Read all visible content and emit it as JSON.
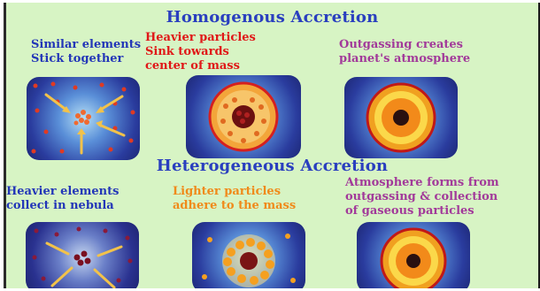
{
  "homogenous": {
    "title": "Homogenous Accretion",
    "step1": {
      "line1": "Similar elements",
      "line2": "Stick together"
    },
    "step2": {
      "line1": "Heavier particles",
      "line2": "Sink towards",
      "line3": "center of mass"
    },
    "step3": {
      "line1": "Outgassing creates",
      "line2": "planet's atmosphere"
    }
  },
  "heterogeneous": {
    "title": "Heterogeneous Accretion",
    "step1": {
      "line1": "Heavier elements",
      "line2": "collect in nebula"
    },
    "step2": {
      "line1": "Lighter particles",
      "line2": "adhere to the mass"
    },
    "step3": {
      "line1": "Atmosphere forms from",
      "line2": "outgassing & collection",
      "line3": "of gaseous particles"
    }
  },
  "colors": {
    "background": "#d7f4c4",
    "heading_blue": "#2a3fbf",
    "caption_blue": "#2336b8",
    "caption_red": "#e01818",
    "caption_purple": "#a23a9a",
    "caption_orange": "#f08a1a"
  }
}
